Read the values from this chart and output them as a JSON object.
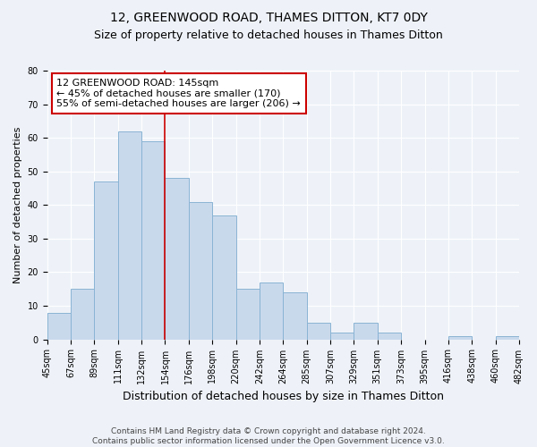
{
  "title": "12, GREENWOOD ROAD, THAMES DITTON, KT7 0DY",
  "subtitle": "Size of property relative to detached houses in Thames Ditton",
  "xlabel": "Distribution of detached houses by size in Thames Ditton",
  "ylabel": "Number of detached properties",
  "bar_values": [
    8,
    15,
    47,
    62,
    59,
    48,
    41,
    37,
    15,
    17,
    14,
    5,
    2,
    5,
    2,
    0,
    0,
    1,
    0,
    1
  ],
  "bar_labels": [
    "45sqm",
    "67sqm",
    "89sqm",
    "111sqm",
    "132sqm",
    "154sqm",
    "176sqm",
    "198sqm",
    "220sqm",
    "242sqm",
    "264sqm",
    "285sqm",
    "307sqm",
    "329sqm",
    "351sqm",
    "373sqm",
    "395sqm",
    "416sqm",
    "438sqm",
    "460sqm",
    "482sqm"
  ],
  "bar_color": "#c9d9ec",
  "bar_edge_color": "#8ab4d4",
  "bar_edge_width": 0.7,
  "vline_x": 5,
  "vline_color": "#cc0000",
  "annotation_text": "12 GREENWOOD ROAD: 145sqm\n← 45% of detached houses are smaller (170)\n55% of semi-detached houses are larger (206) →",
  "annotation_box_color": "#ffffff",
  "annotation_box_edge_color": "#cc0000",
  "ylim": [
    0,
    80
  ],
  "yticks": [
    0,
    10,
    20,
    30,
    40,
    50,
    60,
    70,
    80
  ],
  "bg_color": "#eef2f8",
  "footer": "Contains HM Land Registry data © Crown copyright and database right 2024.\nContains public sector information licensed under the Open Government Licence v3.0.",
  "title_fontsize": 10,
  "subtitle_fontsize": 9,
  "xlabel_fontsize": 9,
  "ylabel_fontsize": 8,
  "tick_fontsize": 7,
  "annotation_fontsize": 8,
  "footer_fontsize": 6.5
}
